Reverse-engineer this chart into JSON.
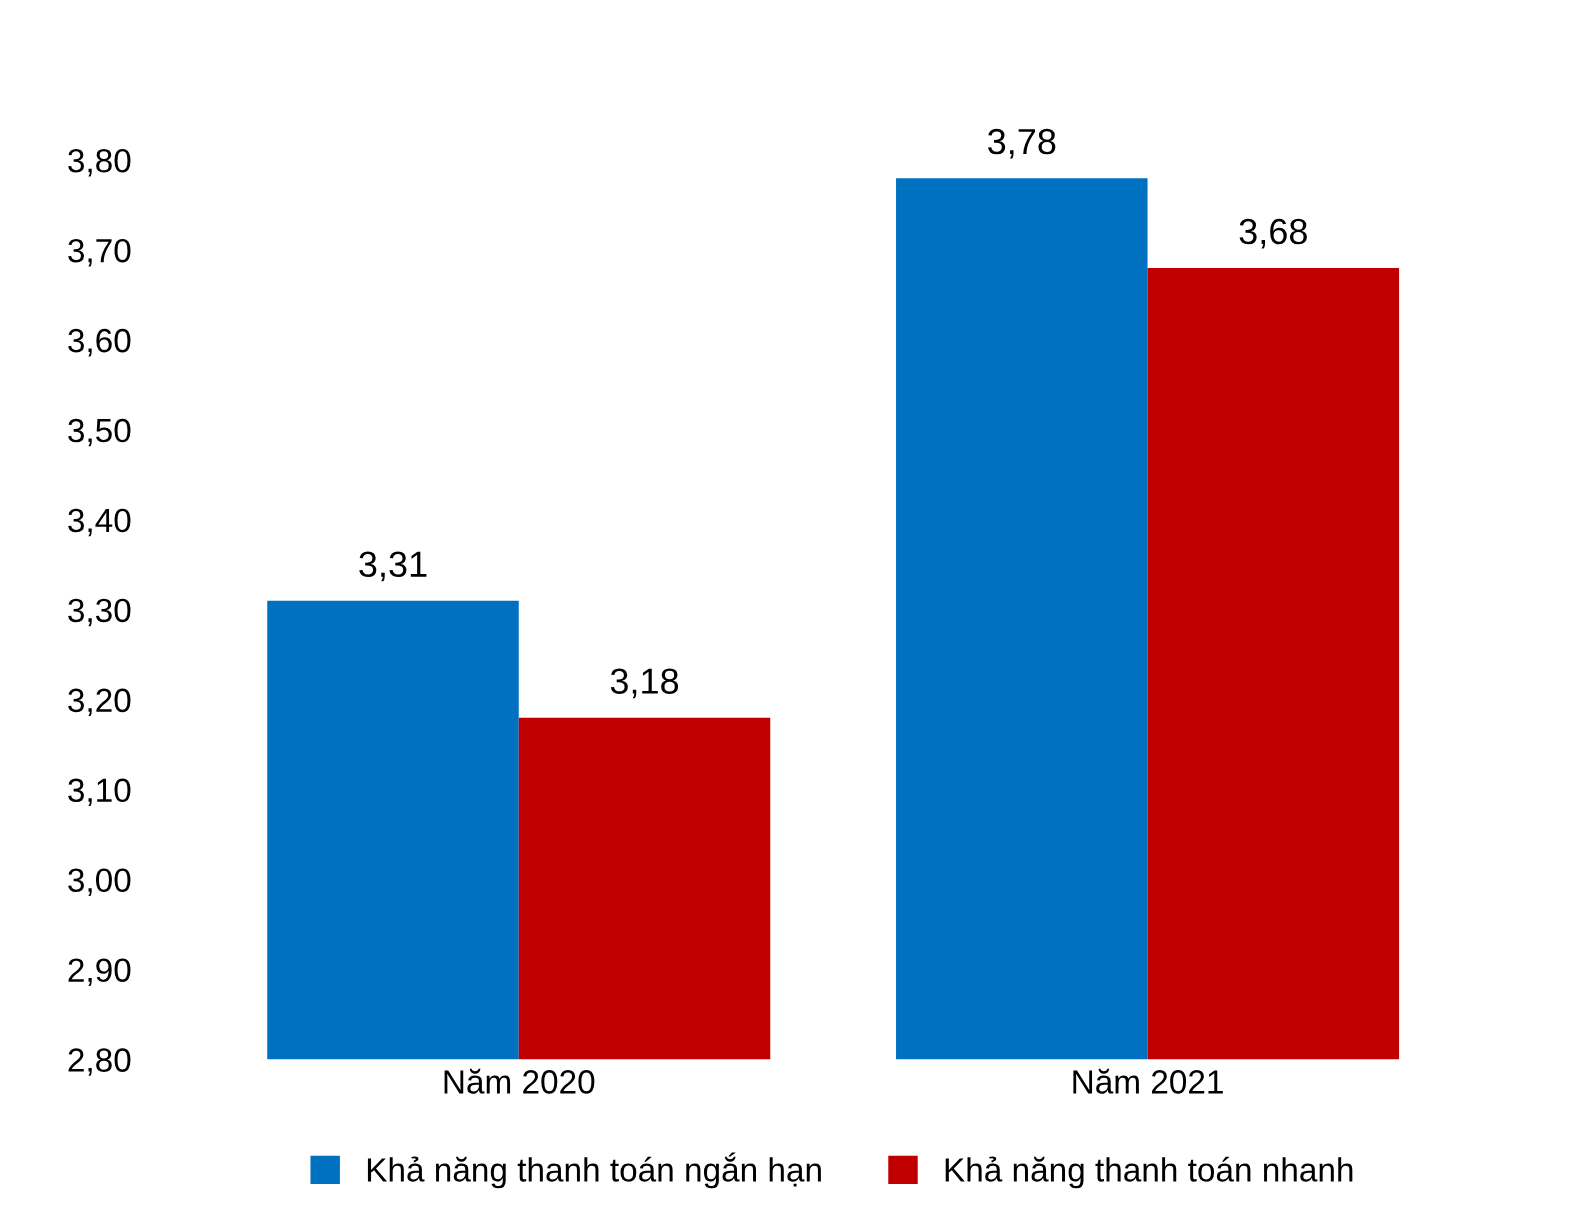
{
  "chart_data": {
    "type": "bar",
    "categories": [
      "Năm 2020",
      "Năm 2021"
    ],
    "series": [
      {
        "name": "Khả năng thanh toán ngắn hạn",
        "color": "#0070c0",
        "values": [
          3.31,
          3.78
        ],
        "value_labels": [
          "3,31",
          "3,78"
        ]
      },
      {
        "name": "Khả năng thanh toán nhanh",
        "color": "#c00000",
        "values": [
          3.18,
          3.68
        ],
        "value_labels": [
          "3,18",
          "3,68"
        ]
      }
    ],
    "ylim": [
      2.8,
      3.8
    ],
    "yticks": [
      {
        "value": 2.8,
        "label": "2,80"
      },
      {
        "value": 2.9,
        "label": "2,90"
      },
      {
        "value": 3.0,
        "label": "3,00"
      },
      {
        "value": 3.1,
        "label": "3,10"
      },
      {
        "value": 3.2,
        "label": "3,20"
      },
      {
        "value": 3.3,
        "label": "3,30"
      },
      {
        "value": 3.4,
        "label": "3,40"
      },
      {
        "value": 3.5,
        "label": "3,50"
      },
      {
        "value": 3.6,
        "label": "3,60"
      },
      {
        "value": 3.7,
        "label": "3,70"
      },
      {
        "value": 3.8,
        "label": "3,80"
      }
    ],
    "grid": false,
    "legend": "bottom"
  }
}
